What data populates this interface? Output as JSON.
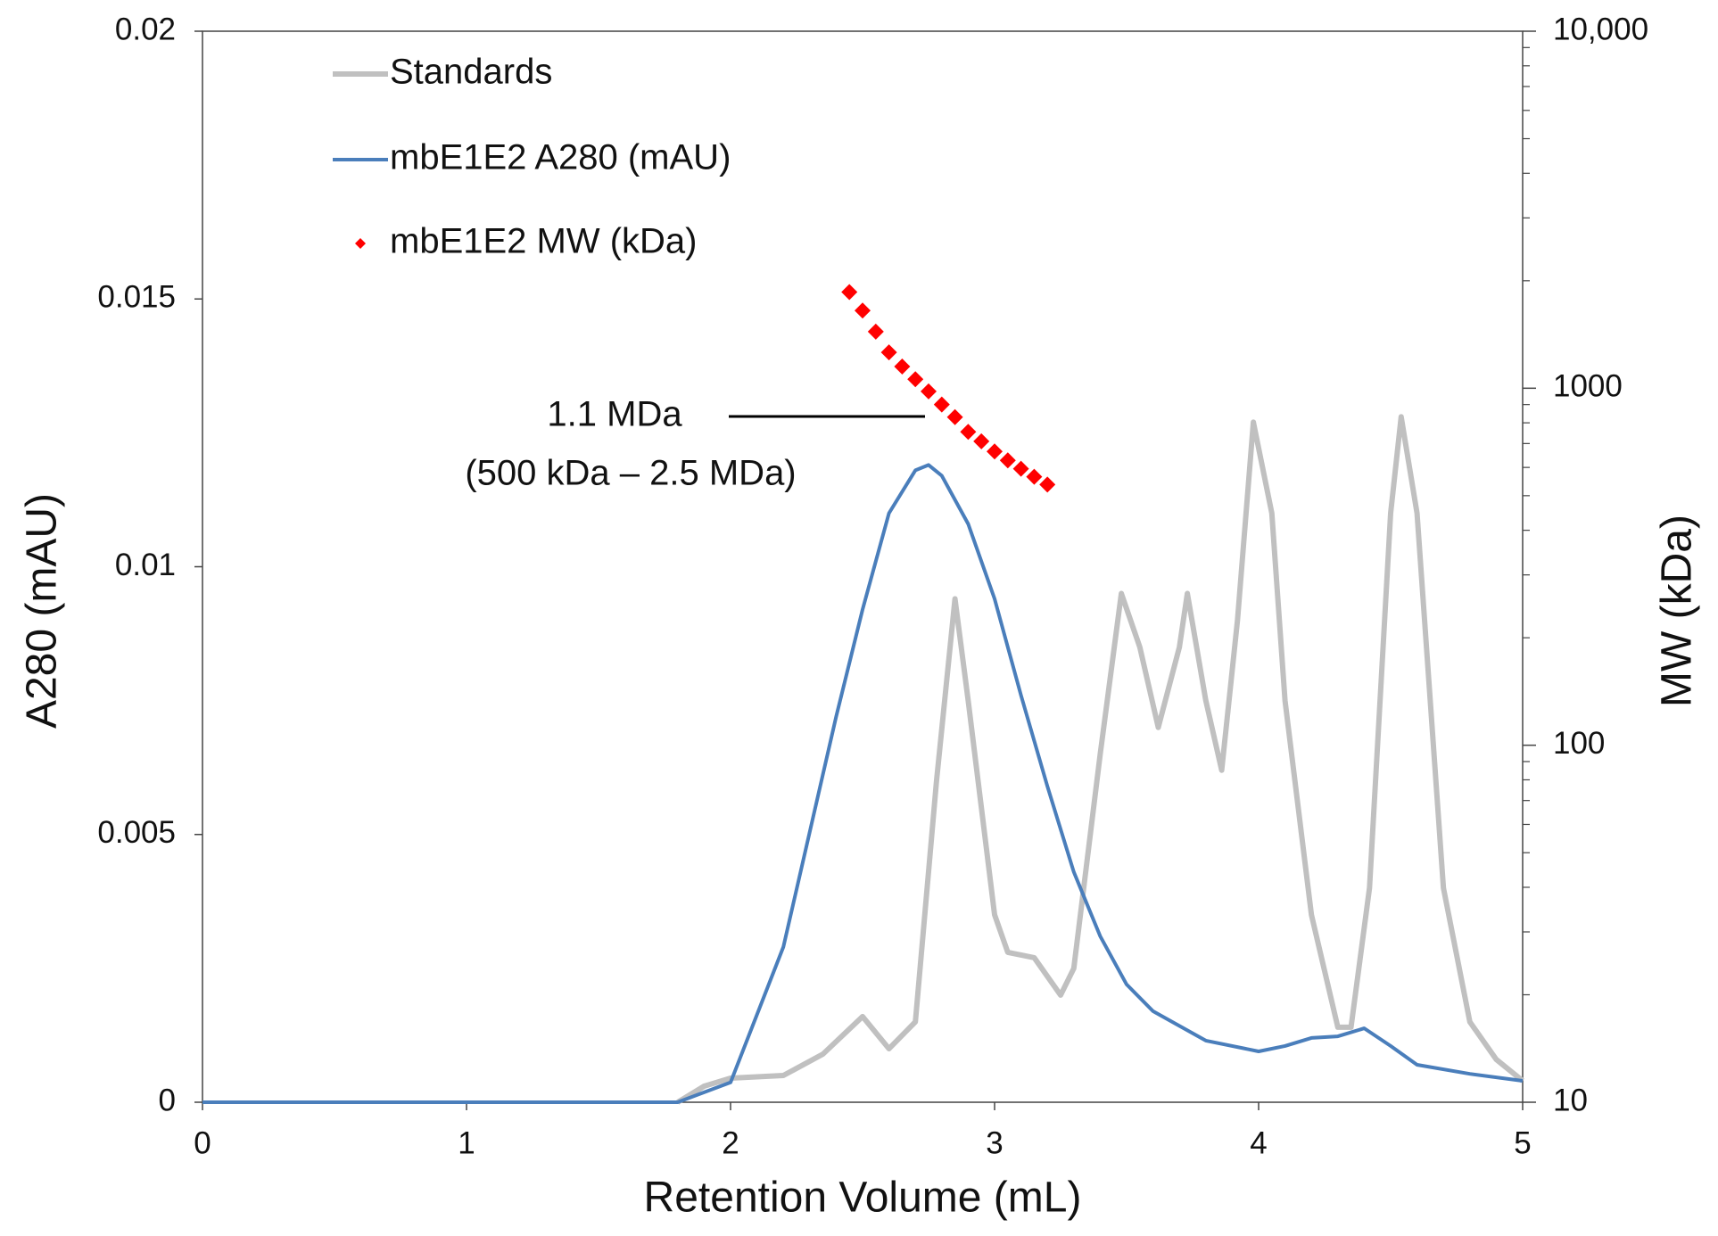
{
  "chart_data": {
    "type": "line",
    "xlabel": "Retention Volume (mL)",
    "ylabel": "A280 (mAU)",
    "y2label": "MW (kDa)",
    "xlim": [
      0,
      5
    ],
    "xticks": [
      0,
      1,
      2,
      3,
      4,
      5
    ],
    "ylim": [
      0,
      0.02
    ],
    "yticks": [
      0,
      0.005,
      0.01,
      0.015,
      0.02
    ],
    "y2lim": [
      10,
      10000
    ],
    "y2log": true,
    "y2ticks": [
      10,
      100,
      1000,
      {
        "value": 10000,
        "label": "10,000"
      }
    ],
    "annotations": [
      "1.1 MDa",
      "(500 kDa – 2.5 MDa)"
    ],
    "series": [
      {
        "name": "Standards",
        "type": "line",
        "color": "#c0c0c0",
        "x": [
          1.8,
          1.9,
          2.0,
          2.2,
          2.35,
          2.5,
          2.6,
          2.7,
          2.78,
          2.85,
          2.9,
          3.0,
          3.05,
          3.15,
          3.25,
          3.3,
          3.4,
          3.48,
          3.55,
          3.62,
          3.7,
          3.73,
          3.8,
          3.86,
          3.92,
          3.98,
          4.05,
          4.1,
          4.2,
          4.3,
          4.35,
          4.42,
          4.5,
          4.54,
          4.6,
          4.7,
          4.8,
          4.9,
          5.0
        ],
        "values": [
          0,
          0.0003,
          0.00045,
          0.0005,
          0.0009,
          0.0016,
          0.001,
          0.0015,
          0.006,
          0.0094,
          0.0075,
          0.0035,
          0.0028,
          0.0027,
          0.002,
          0.0025,
          0.0065,
          0.0095,
          0.0085,
          0.007,
          0.0085,
          0.0095,
          0.0075,
          0.0062,
          0.009,
          0.0127,
          0.011,
          0.0075,
          0.0035,
          0.0014,
          0.0014,
          0.004,
          0.011,
          0.0128,
          0.011,
          0.004,
          0.0015,
          0.0008,
          0.0004
        ]
      },
      {
        "name": "mbE1E2 A280 (mAU)",
        "type": "line",
        "color": "#4a7ebb",
        "x": [
          0,
          1.8,
          2.0,
          2.2,
          2.4,
          2.5,
          2.6,
          2.7,
          2.75,
          2.8,
          2.9,
          3.0,
          3.1,
          3.2,
          3.3,
          3.4,
          3.5,
          3.6,
          3.8,
          4.0,
          4.1,
          4.2,
          4.3,
          4.4,
          4.5,
          4.6,
          4.8,
          5.0
        ],
        "values": [
          0,
          0,
          0.00037,
          0.0029,
          0.0072,
          0.0092,
          0.011,
          0.0118,
          0.0119,
          0.0117,
          0.0108,
          0.0094,
          0.0076,
          0.0059,
          0.0043,
          0.0031,
          0.0022,
          0.0017,
          0.00115,
          0.00095,
          0.00105,
          0.0012,
          0.00123,
          0.00138,
          0.00105,
          0.0007,
          0.00053,
          0.0004
        ]
      },
      {
        "name": "mbE1E2 MW (kDa)",
        "type": "scatter",
        "color": "#ff0000",
        "axis": "y2",
        "x": [
          2.45,
          2.5,
          2.55,
          2.6,
          2.65,
          2.7,
          2.75,
          2.8,
          2.85,
          2.9,
          2.95,
          3.0,
          3.05,
          3.1,
          3.15,
          3.2
        ],
        "values": [
          1860,
          1650,
          1440,
          1260,
          1150,
          1060,
          980,
          900,
          830,
          755,
          710,
          665,
          628,
          595,
          565,
          537
        ]
      }
    ]
  }
}
